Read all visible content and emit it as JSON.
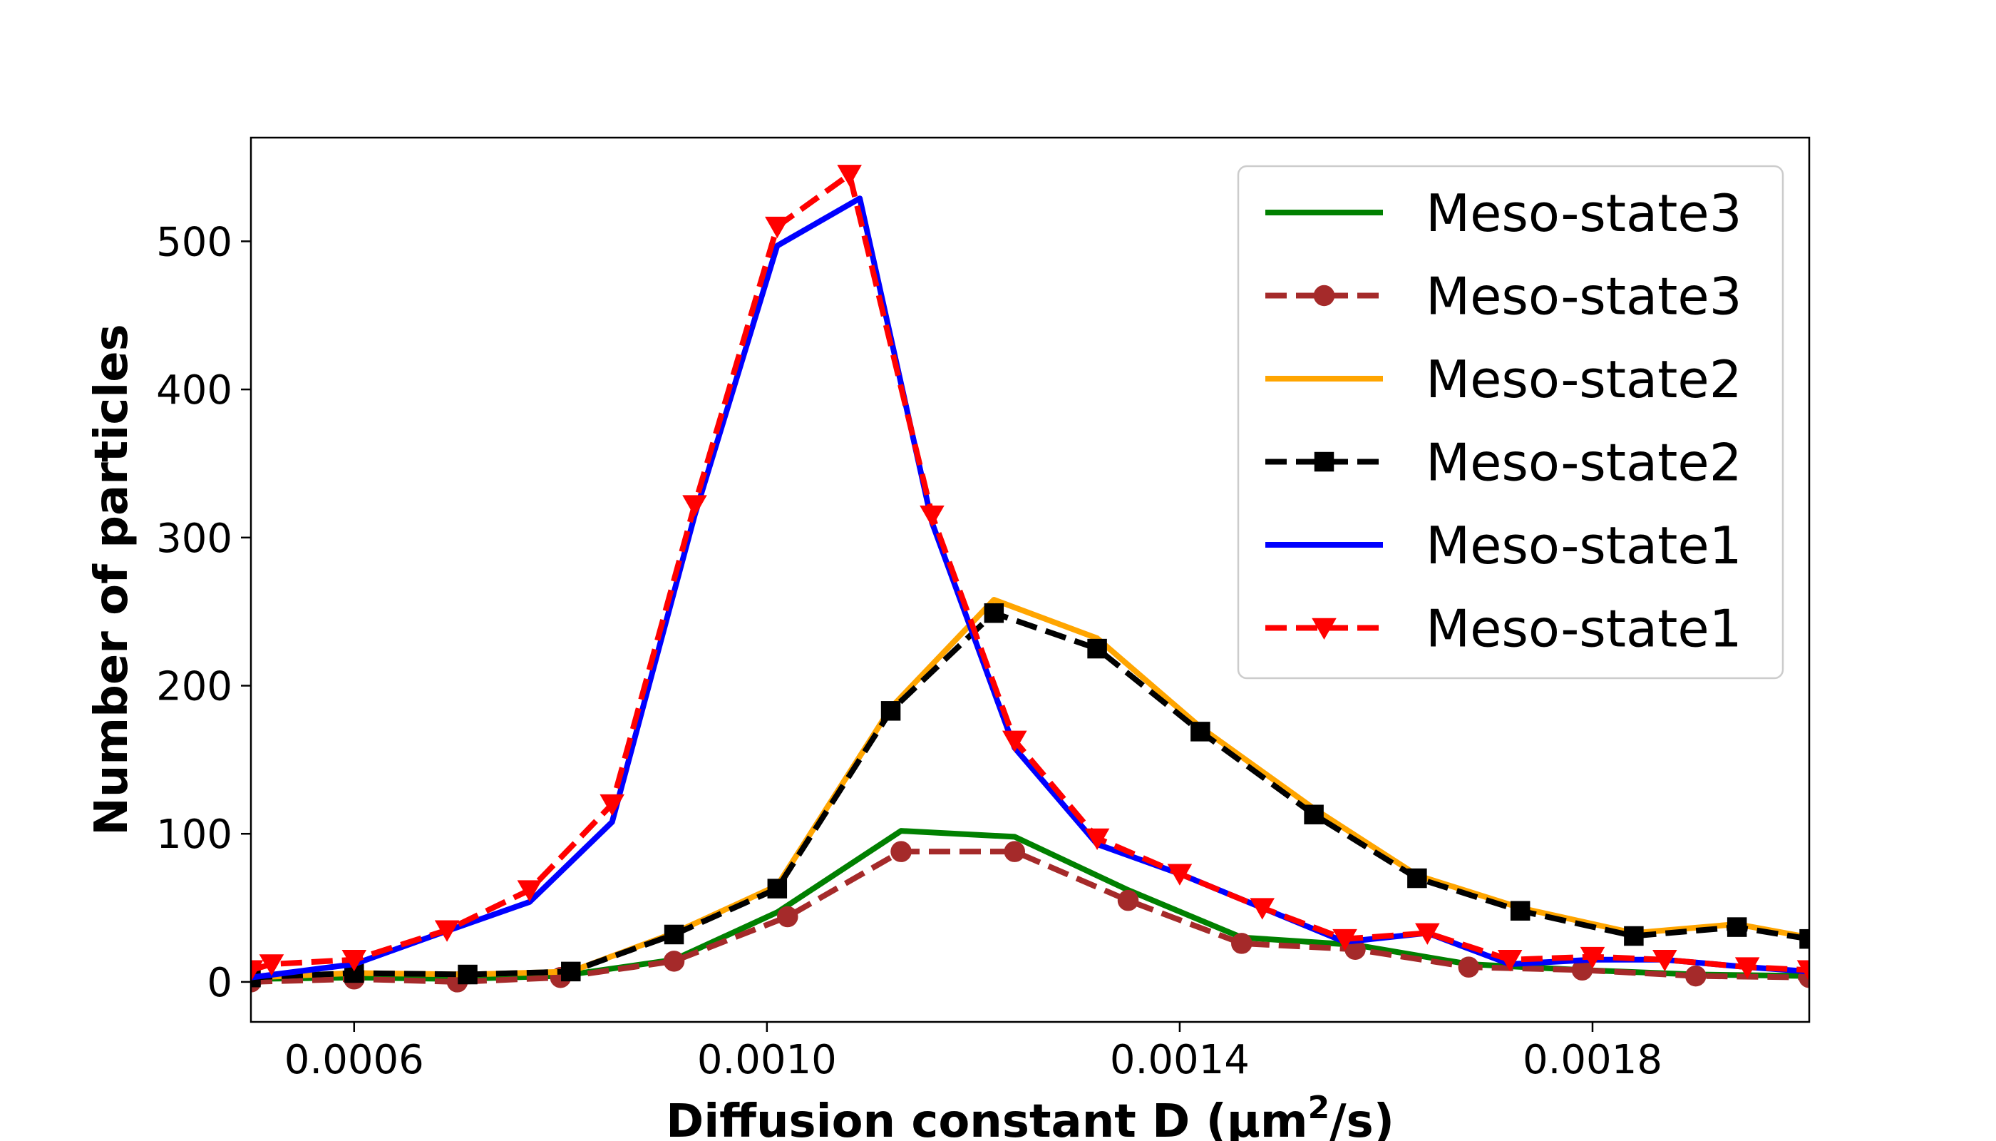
{
  "chart_data": {
    "type": "line",
    "title": "",
    "xlabel": "Diffusion constant D (",
    "xlabel_unit": "μm",
    "xlabel_sup": "2",
    "xlabel_end": "/s)",
    "ylabel": "Number of particles",
    "xlim": [
      0.0005,
      0.00201
    ],
    "ylim": [
      -27,
      570
    ],
    "xticks": [
      0.0006,
      0.001,
      0.0014,
      0.0018
    ],
    "xtick_labels": [
      "0.0006",
      "0.0010",
      "0.0014",
      "0.0018"
    ],
    "yticks": [
      0,
      100,
      200,
      300,
      400,
      500
    ],
    "ytick_labels": [
      "0",
      "100",
      "200",
      "300",
      "400",
      "500"
    ],
    "legend_position": "top-right",
    "series": [
      {
        "name": "Meso-state3",
        "color": "#008000",
        "style": "solid",
        "marker": "none",
        "x": [
          0.0005,
          0.0006,
          0.0007,
          0.0008,
          0.00091,
          0.00101,
          0.00113,
          0.00124,
          0.00135,
          0.00146,
          0.00157,
          0.00168,
          0.00179,
          0.0019,
          0.00201
        ],
        "y": [
          2,
          3,
          2,
          4,
          15,
          47,
          102,
          98,
          62,
          30,
          25,
          12,
          8,
          5,
          4
        ]
      },
      {
        "name": "Meso-state3",
        "color": "#a52a2a",
        "style": "dashed",
        "marker": "circle",
        "x": [
          0.0005,
          0.0006,
          0.0007,
          0.0008,
          0.00091,
          0.00102,
          0.00113,
          0.00124,
          0.00135,
          0.00146,
          0.00157,
          0.00168,
          0.00179,
          0.0019,
          0.00201
        ],
        "y": [
          0,
          2,
          0,
          3,
          14,
          44,
          88,
          88,
          55,
          26,
          22,
          10,
          8,
          4,
          3
        ]
      },
      {
        "name": "Meso-state2",
        "color": "#ffa500",
        "style": "solid",
        "marker": "none",
        "x": [
          0.0005,
          0.0006,
          0.00071,
          0.00081,
          0.00091,
          0.00101,
          0.00112,
          0.00122,
          0.00132,
          0.00142,
          0.00153,
          0.00163,
          0.00173,
          0.00184,
          0.00194,
          0.00201
        ],
        "y": [
          3,
          6,
          5,
          7,
          33,
          65,
          185,
          258,
          232,
          172,
          117,
          72,
          50,
          33,
          39,
          30
        ]
      },
      {
        "name": "Meso-state2",
        "color": "#000000",
        "style": "dashed",
        "marker": "square",
        "x": [
          0.0005,
          0.0006,
          0.00071,
          0.00081,
          0.00091,
          0.00101,
          0.00112,
          0.00122,
          0.00132,
          0.00142,
          0.00153,
          0.00163,
          0.00173,
          0.00184,
          0.00194,
          0.00201
        ],
        "y": [
          3,
          6,
          5,
          7,
          32,
          63,
          183,
          249,
          225,
          169,
          113,
          70,
          48,
          31,
          37,
          29
        ]
      },
      {
        "name": "Meso-state1",
        "color": "#0000ff",
        "style": "solid",
        "marker": "none",
        "x": [
          0.0005,
          0.0006,
          0.00068,
          0.00077,
          0.00085,
          0.00093,
          0.00101,
          0.00109,
          0.00116,
          0.00124,
          0.00132,
          0.0014,
          0.00148,
          0.00156,
          0.00164,
          0.00172,
          0.0018,
          0.00187,
          0.00195,
          0.00201
        ],
        "y": [
          3,
          12,
          32,
          54,
          108,
          315,
          497,
          529,
          310,
          158,
          93,
          73,
          50,
          27,
          33,
          12,
          15,
          15,
          10,
          7
        ]
      },
      {
        "name": "Meso-state1",
        "color": "#ff0000",
        "style": "dashed",
        "marker": "triangle-down",
        "x": [
          0.0005,
          0.00052,
          0.0006,
          0.00069,
          0.00077,
          0.00085,
          0.00093,
          0.00101,
          0.00108,
          0.00116,
          0.00124,
          0.00132,
          0.0014,
          0.00148,
          0.00156,
          0.00164,
          0.00172,
          0.0018,
          0.00187,
          0.00195,
          0.00201
        ],
        "y": [
          8,
          12,
          15,
          35,
          62,
          120,
          322,
          510,
          545,
          315,
          163,
          97,
          73,
          50,
          29,
          33,
          15,
          17,
          15,
          10,
          8
        ]
      }
    ]
  }
}
